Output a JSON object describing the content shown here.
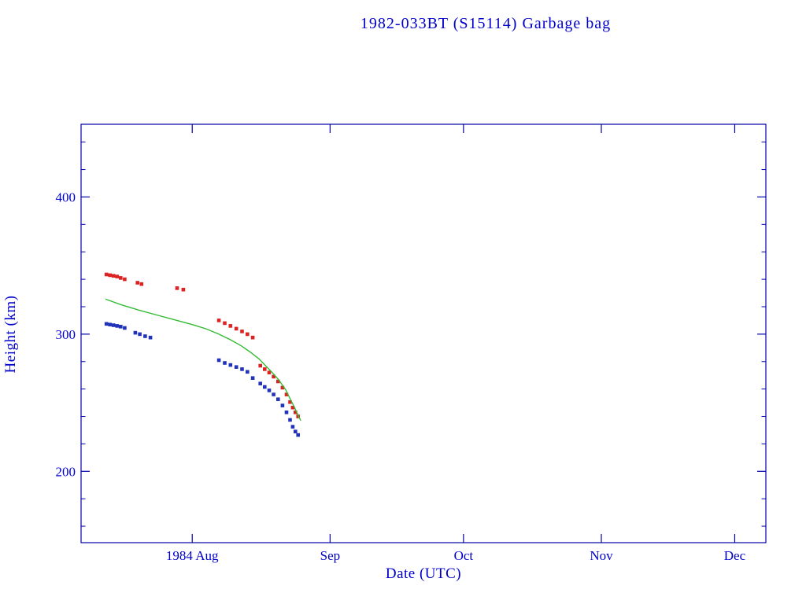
{
  "chart_data": {
    "type": "scatter",
    "title": "1982-033BT (S15114) Garbage bag",
    "xlabel": "Date (UTC)",
    "ylabel": "Height (km)",
    "colors": {
      "frame": "#0000aa",
      "text": "#0000cc"
    },
    "x_axis": {
      "unit": "day of year 1984",
      "min": 189,
      "max": 343,
      "major_ticks": [
        {
          "day": 214,
          "label": "1984 Aug"
        },
        {
          "day": 245,
          "label": "Sep"
        },
        {
          "day": 275,
          "label": "Oct"
        },
        {
          "day": 306,
          "label": "Nov"
        },
        {
          "day": 336,
          "label": "Dec"
        }
      ]
    },
    "y_axis": {
      "min": 148,
      "max": 453,
      "major_ticks": [
        200,
        300,
        400
      ],
      "minor_step": 20
    },
    "series": [
      {
        "name": "apogee-height",
        "type": "scatter",
        "marker": "square",
        "color": "#dd2222",
        "points": [
          [
            194.7,
            343.5
          ],
          [
            195.5,
            343
          ],
          [
            196.3,
            342.5
          ],
          [
            197.1,
            342
          ],
          [
            197.9,
            341
          ],
          [
            198.8,
            340
          ],
          [
            201.7,
            337.5
          ],
          [
            202.6,
            336.5
          ],
          [
            210.6,
            333.5
          ],
          [
            212.0,
            332.5
          ],
          [
            220.0,
            310
          ],
          [
            221.3,
            308
          ],
          [
            222.6,
            306
          ],
          [
            223.9,
            304
          ],
          [
            225.2,
            302
          ],
          [
            226.4,
            300
          ],
          [
            227.6,
            297.5
          ],
          [
            229.3,
            277
          ],
          [
            230.3,
            274.5
          ],
          [
            231.3,
            272
          ],
          [
            232.3,
            269
          ],
          [
            233.3,
            265.5
          ],
          [
            234.3,
            261
          ],
          [
            235.2,
            256
          ],
          [
            236.0,
            250.5
          ],
          [
            236.6,
            246.5
          ],
          [
            237.2,
            243
          ],
          [
            237.8,
            240
          ]
        ]
      },
      {
        "name": "perigee-height",
        "type": "scatter",
        "marker": "square",
        "color": "#2233bb",
        "points": [
          [
            194.7,
            307.5
          ],
          [
            195.5,
            307
          ],
          [
            196.3,
            306.5
          ],
          [
            197.1,
            306
          ],
          [
            197.9,
            305.5
          ],
          [
            198.8,
            304.5
          ],
          [
            201.2,
            301
          ],
          [
            202.2,
            300
          ],
          [
            203.4,
            298.5
          ],
          [
            204.6,
            297.5
          ],
          [
            220.0,
            281
          ],
          [
            221.3,
            279
          ],
          [
            222.6,
            277.5
          ],
          [
            223.9,
            276
          ],
          [
            225.2,
            274.5
          ],
          [
            226.4,
            272.5
          ],
          [
            227.6,
            268
          ],
          [
            229.3,
            264
          ],
          [
            230.3,
            261.5
          ],
          [
            231.3,
            259
          ],
          [
            232.3,
            256
          ],
          [
            233.3,
            252.5
          ],
          [
            234.3,
            248
          ],
          [
            235.2,
            243
          ],
          [
            236.0,
            237.5
          ],
          [
            236.6,
            232.5
          ],
          [
            237.2,
            229
          ],
          [
            237.8,
            226.5
          ]
        ]
      },
      {
        "name": "mean-height",
        "type": "line",
        "color": "#33bb33",
        "points": [
          [
            194.5,
            325.5
          ],
          [
            198,
            321.5
          ],
          [
            202,
            317.5
          ],
          [
            206,
            314
          ],
          [
            210,
            310.5
          ],
          [
            214,
            307
          ],
          [
            217,
            304
          ],
          [
            220,
            300
          ],
          [
            222.5,
            296
          ],
          [
            225,
            291.5
          ],
          [
            227,
            287
          ],
          [
            229,
            282
          ],
          [
            230.5,
            277
          ],
          [
            232,
            272
          ],
          [
            233.5,
            266.5
          ],
          [
            235,
            259.5
          ],
          [
            236,
            253
          ],
          [
            237,
            246.5
          ],
          [
            237.8,
            241
          ],
          [
            238.4,
            237
          ]
        ]
      }
    ]
  }
}
